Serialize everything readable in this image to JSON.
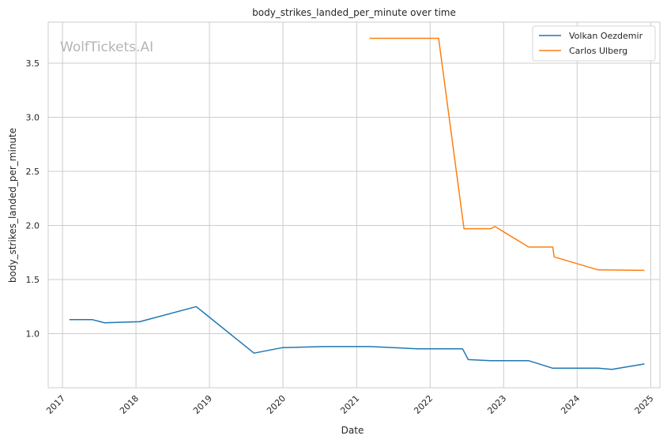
{
  "chart_data": {
    "type": "line",
    "title": "body_strikes_landed_per_minute over time",
    "xlabel": "Date",
    "ylabel": "body_strikes_landed_per_minute",
    "watermark": "WolfTickets.AI",
    "x_ticks": [
      "2017",
      "2018",
      "2019",
      "2020",
      "2021",
      "2022",
      "2023",
      "2024",
      "2025"
    ],
    "y_ticks": [
      "1.0",
      "1.5",
      "2.0",
      "2.5",
      "3.0",
      "3.5"
    ],
    "xlim": [
      "2016-10-22",
      "2025-02-15"
    ],
    "ylim": [
      0.5,
      3.88
    ],
    "grid": true,
    "legend_position": "top-right",
    "series": [
      {
        "name": "Volkan Oezdemir",
        "color": "#1f77b4",
        "points": [
          [
            "2017-02-04",
            1.13
          ],
          [
            "2017-05-28",
            1.13
          ],
          [
            "2017-07-29",
            1.1
          ],
          [
            "2018-01-20",
            1.11
          ],
          [
            "2018-10-27",
            1.25
          ],
          [
            "2019-08-10",
            0.82
          ],
          [
            "2019-12-28",
            0.87
          ],
          [
            "2020-07-20",
            0.88
          ],
          [
            "2021-03-10",
            0.88
          ],
          [
            "2021-10-30",
            0.86
          ],
          [
            "2022-06-11",
            0.86
          ],
          [
            "2022-07-09",
            0.76
          ],
          [
            "2022-10-29",
            0.75
          ],
          [
            "2023-05-06",
            0.75
          ],
          [
            "2023-09-02",
            0.68
          ],
          [
            "2024-04-13",
            0.68
          ],
          [
            "2024-06-22",
            0.67
          ],
          [
            "2024-11-30",
            0.72
          ]
        ]
      },
      {
        "name": "Carlos Ulberg",
        "color": "#ff7f0e",
        "points": [
          [
            "2021-03-06",
            3.73
          ],
          [
            "2022-02-12",
            3.73
          ],
          [
            "2022-06-18",
            1.97
          ],
          [
            "2022-10-29",
            1.97
          ],
          [
            "2022-11-19",
            1.99
          ],
          [
            "2023-05-06",
            1.8
          ],
          [
            "2023-09-02",
            1.8
          ],
          [
            "2023-09-09",
            1.71
          ],
          [
            "2024-04-13",
            1.59
          ],
          [
            "2024-11-30",
            1.585
          ]
        ]
      }
    ]
  }
}
